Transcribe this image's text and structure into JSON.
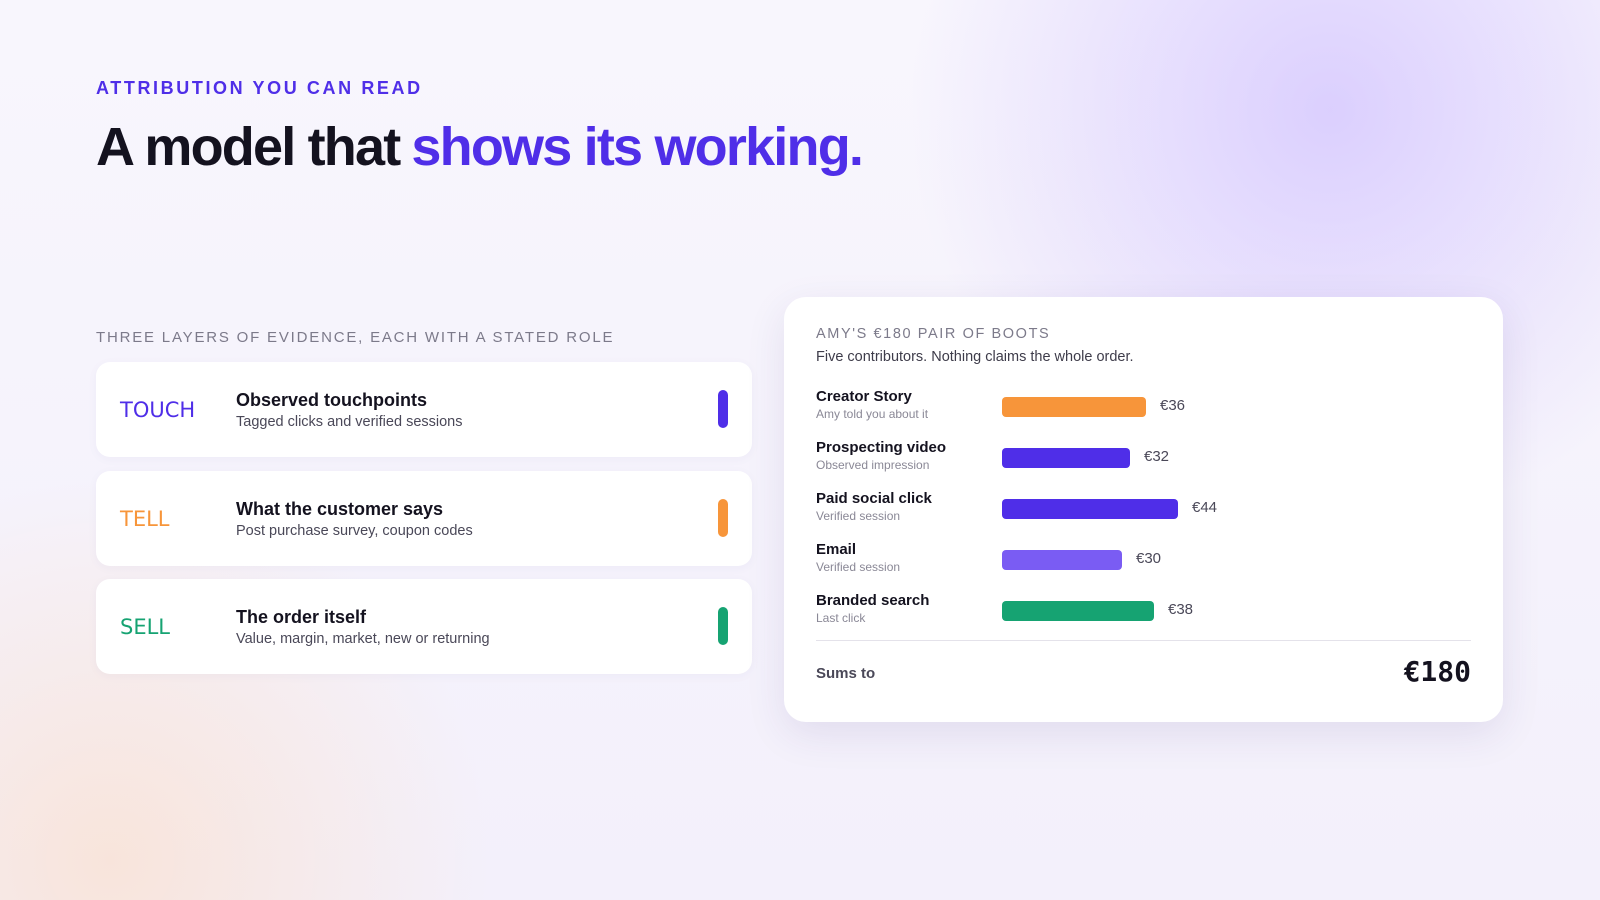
{
  "eyebrow": "ATTRIBUTION YOU CAN READ",
  "headline": {
    "lead": "A model that",
    "accent": "shows its working."
  },
  "layers": {
    "heading": "THREE LAYERS OF EVIDENCE, EACH WITH A STATED ROLE",
    "items": [
      {
        "tag": "TOUCH",
        "title": "Observed touchpoints",
        "detail": "Tagged clicks and verified sessions",
        "color": "#4f2ee8"
      },
      {
        "tag": "TELL",
        "title": "What the customer says",
        "detail": "Post purchase survey, coupon codes",
        "color": "#f7953a"
      },
      {
        "tag": "SELL",
        "title": "The order itself",
        "detail": "Value, margin, market, new or returning",
        "color": "#16a372"
      }
    ]
  },
  "card": {
    "title": "AMY'S €180 PAIR OF BOOTS",
    "subtitle": "Five contributors. Nothing claims the whole order.",
    "chart_data": {
      "type": "bar",
      "categories": [
        "Creator Story",
        "Prospecting video",
        "Paid social click",
        "Email",
        "Branded search"
      ],
      "notes": [
        "Amy told you about it",
        "Observed impression",
        "Verified session",
        "Verified session",
        "Last click"
      ],
      "values": [
        36,
        32,
        44,
        30,
        38
      ],
      "value_labels": [
        "€36",
        "€32",
        "€44",
        "€30",
        "€38"
      ],
      "colors": [
        "#f7953a",
        "#4f2ee8",
        "#4f2ee8",
        "#7a5cf3",
        "#16a372"
      ]
    },
    "total": {
      "label": "Sums to",
      "value": "€180"
    }
  }
}
